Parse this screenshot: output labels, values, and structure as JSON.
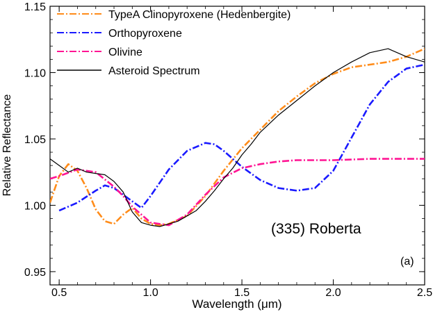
{
  "chart_data": {
    "type": "line",
    "xlabel": "Wavelength (μm)",
    "ylabel": "Relative Reflectance",
    "xlim": [
      0.45,
      2.5
    ],
    "ylim": [
      0.94,
      1.15
    ],
    "x_ticks": [
      "0.5",
      "1.0",
      "1.5",
      "2.0",
      "2.5"
    ],
    "y_ticks": [
      "0.95",
      "1.00",
      "1.05",
      "1.10",
      "1.15"
    ],
    "legend_position": "top-left",
    "annotations": {
      "object_label": "(335) Roberta",
      "panel_label": "(a)"
    },
    "colors": {
      "clinopyroxene": "#ff8c1a",
      "orthopyroxene": "#1a1aff",
      "olivine": "#ff1493",
      "asteroid": "#000000"
    },
    "series": [
      {
        "name": "TypeA Clinopyroxene (Hedenbergite)",
        "style": "dash-dot",
        "color": "#ff8c1a",
        "x": [
          0.45,
          0.5,
          0.55,
          0.6,
          0.65,
          0.7,
          0.75,
          0.8,
          0.85,
          0.9,
          0.95,
          1.0,
          1.05,
          1.1,
          1.2,
          1.3,
          1.4,
          1.5,
          1.6,
          1.7,
          1.8,
          1.9,
          2.0,
          2.1,
          2.2,
          2.3,
          2.4,
          2.5
        ],
        "y": [
          1.002,
          1.022,
          1.031,
          1.026,
          1.013,
          0.997,
          0.988,
          0.986,
          0.993,
          0.998,
          0.99,
          0.986,
          0.985,
          0.986,
          0.992,
          1.007,
          1.026,
          1.043,
          1.057,
          1.071,
          1.082,
          1.092,
          1.099,
          1.104,
          1.106,
          1.108,
          1.112,
          1.118
        ]
      },
      {
        "name": "Orthopyroxene",
        "style": "dash-dot",
        "color": "#1a1aff",
        "x": [
          0.5,
          0.6,
          0.7,
          0.75,
          0.8,
          0.9,
          0.95,
          1.0,
          1.1,
          1.2,
          1.3,
          1.35,
          1.4,
          1.5,
          1.6,
          1.7,
          1.8,
          1.9,
          2.0,
          2.1,
          2.2,
          2.3,
          2.4,
          2.5
        ],
        "y": [
          0.996,
          1.002,
          1.011,
          1.015,
          1.013,
          1.003,
          0.998,
          1.007,
          1.027,
          1.041,
          1.047,
          1.046,
          1.041,
          1.029,
          1.019,
          1.013,
          1.011,
          1.013,
          1.026,
          1.051,
          1.076,
          1.093,
          1.103,
          1.106
        ]
      },
      {
        "name": "Olivine",
        "style": "dash-dot",
        "color": "#ff1493",
        "x": [
          0.45,
          0.5,
          0.6,
          0.7,
          0.8,
          0.85,
          0.9,
          1.0,
          1.1,
          1.2,
          1.3,
          1.4,
          1.5,
          1.6,
          1.7,
          1.8,
          2.0,
          2.2,
          2.5
        ],
        "y": [
          1.02,
          1.022,
          1.027,
          1.025,
          1.014,
          1.007,
          0.999,
          0.987,
          0.985,
          0.993,
          1.008,
          1.021,
          1.028,
          1.031,
          1.033,
          1.034,
          1.034,
          1.035,
          1.035
        ]
      },
      {
        "name": "Asteroid Spectrum",
        "style": "solid",
        "color": "#000000",
        "x": [
          0.45,
          0.5,
          0.55,
          0.6,
          0.65,
          0.7,
          0.75,
          0.8,
          0.85,
          0.9,
          0.95,
          1.0,
          1.05,
          1.1,
          1.15,
          1.2,
          1.25,
          1.3,
          1.35,
          1.4,
          1.45,
          1.5,
          1.55,
          1.6,
          1.7,
          1.8,
          1.9,
          2.0,
          2.1,
          2.2,
          2.3,
          2.4,
          2.5
        ],
        "y": [
          1.035,
          1.03,
          1.025,
          1.028,
          1.025,
          1.024,
          1.023,
          1.018,
          1.01,
          0.995,
          0.987,
          0.985,
          0.984,
          0.986,
          0.988,
          0.992,
          0.996,
          1.003,
          1.011,
          1.02,
          1.028,
          1.038,
          1.046,
          1.055,
          1.068,
          1.079,
          1.09,
          1.1,
          1.108,
          1.115,
          1.118,
          1.112,
          1.108
        ]
      }
    ]
  }
}
